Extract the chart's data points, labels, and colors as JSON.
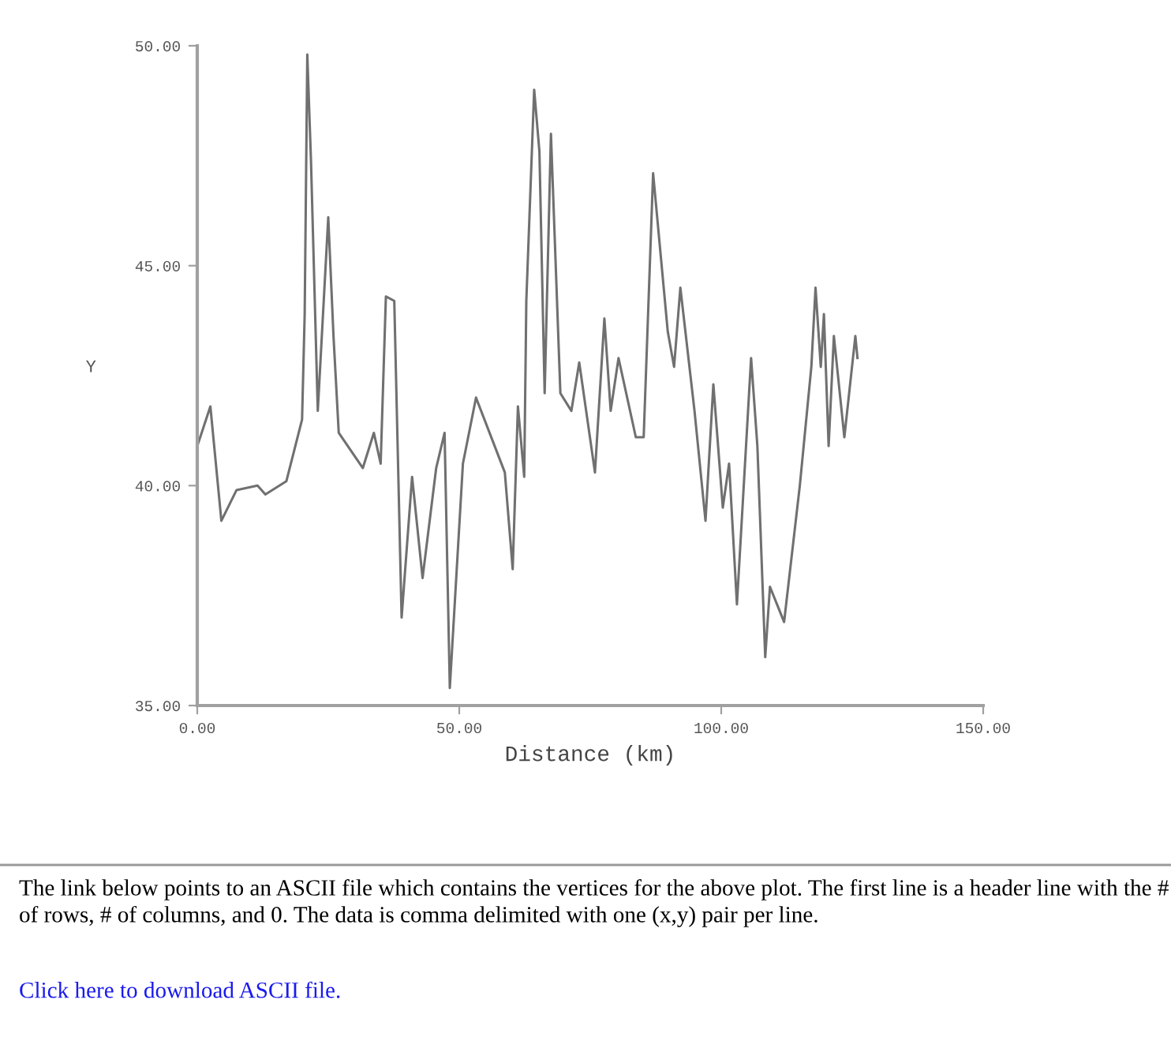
{
  "chart_data": {
    "type": "line",
    "xlabel": "Distance (km)",
    "ylabel": "Y",
    "x": [
      0,
      2.5,
      4.6,
      7.5,
      11.5,
      13,
      17,
      20,
      20.5,
      21,
      21.7,
      23,
      25,
      26,
      27,
      31.6,
      33.7,
      35,
      36,
      37.6,
      39,
      41,
      43,
      45.6,
      47.2,
      48.2,
      50.7,
      53.2,
      58.7,
      60.2,
      61.2,
      62.4,
      62.8,
      64.3,
      65.3,
      66.3,
      67.5,
      69.3,
      71.4,
      72.9,
      75.9,
      77.7,
      78.9,
      80.4,
      83.7,
      85.2,
      87,
      89.8,
      91,
      92.2,
      94.9,
      97,
      98.5,
      100.3,
      101.5,
      103,
      105.7,
      106.9,
      108.4,
      109.3,
      112,
      115,
      117.2,
      118,
      119,
      119.6,
      120.5,
      121.5,
      123.5,
      125.6,
      126
    ],
    "series": [
      {
        "color": "#707070",
        "values": [
          40.9,
          41.8,
          39.2,
          39.9,
          40.0,
          39.8,
          40.1,
          41.5,
          43.9,
          49.8,
          47.4,
          41.7,
          46.1,
          43.4,
          41.2,
          40.4,
          41.2,
          40.5,
          44.3,
          44.2,
          37.0,
          40.2,
          37.9,
          40.4,
          41.2,
          35.4,
          40.5,
          42.0,
          40.3,
          38.1,
          41.8,
          40.2,
          44.2,
          49.0,
          47.6,
          42.1,
          48.0,
          42.1,
          41.7,
          42.8,
          40.3,
          43.8,
          41.7,
          42.9,
          41.1,
          41.1,
          47.1,
          43.5,
          42.7,
          44.5,
          41.7,
          39.2,
          42.3,
          39.5,
          40.5,
          37.3,
          42.9,
          40.9,
          36.1,
          37.7,
          36.9,
          40.0,
          42.7,
          44.5,
          42.7,
          43.9,
          40.9,
          43.4,
          41.1,
          43.4,
          42.9
        ]
      }
    ],
    "xlim": [
      0,
      150
    ],
    "ylim": [
      35,
      50
    ],
    "xticks": [
      {
        "value": 0,
        "label": "0.00"
      },
      {
        "value": 50,
        "label": "50.00"
      },
      {
        "value": 100,
        "label": "100.00"
      },
      {
        "value": 150,
        "label": "150.00"
      }
    ],
    "yticks": [
      {
        "value": 35,
        "label": "35.00"
      },
      {
        "value": 40,
        "label": "40.00"
      },
      {
        "value": 45,
        "label": "45.00"
      },
      {
        "value": 50,
        "label": "50.00"
      }
    ],
    "grid": false,
    "legend": false,
    "marker": "none",
    "line_style": "solid",
    "annotations": [
      "The link below points to an ASCII file which contains the vertices for the above plot. The first line is a header line with the # of rows, # of columns, and 0. The data is comma delimited with one (x,y) pair per line.",
      "Click here to download ASCII file."
    ]
  }
}
